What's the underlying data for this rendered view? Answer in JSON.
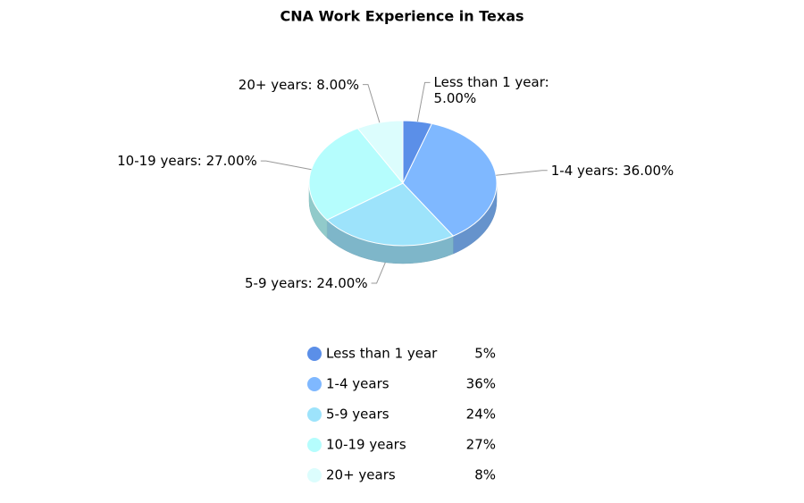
{
  "chart_data": {
    "type": "pie3d",
    "title": "CNA Work Experience in Texas",
    "categories": [
      "Less than 1 year",
      "1-4 years",
      "5-9 years",
      "10-19 years",
      "20+ years"
    ],
    "values": [
      5,
      36,
      24,
      27,
      8
    ],
    "value_labels": [
      "Less than 1 year: 5.00%",
      "1-4 years: 36.00%",
      "5-9 years: 24.00%",
      "10-19 years: 27.00%",
      "20+ years: 8.00%"
    ],
    "legend_value_labels": [
      "5%",
      "36%",
      "24%",
      "27%",
      "8%"
    ],
    "colors": [
      "#5b8fe8",
      "#7fb8ff",
      "#9de3fb",
      "#b5fdfd",
      "#dcfdfd"
    ],
    "legend": "bottom"
  }
}
